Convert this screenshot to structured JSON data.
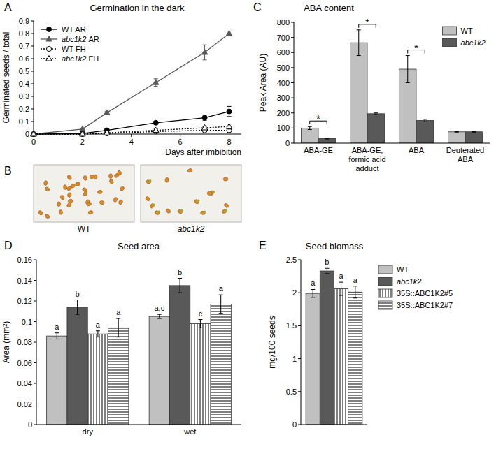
{
  "chart_data": [
    {
      "panel": "A",
      "type": "line",
      "title": "Germination in the dark",
      "x_label": "Days after imbibition",
      "y_label": "Germinated seeds / total",
      "x": [
        0,
        2,
        3,
        5,
        7,
        8
      ],
      "xlim": [
        0,
        8.5
      ],
      "xticks": [
        0,
        2,
        4,
        6,
        8
      ],
      "ylim": [
        0,
        0.9
      ],
      "yticks": [
        0,
        0.1,
        0.2,
        0.3,
        0.4,
        0.5,
        0.6,
        0.7,
        0.8,
        0.9
      ],
      "legend": "top-left",
      "series": [
        {
          "name": "WT AR",
          "color": "#000000",
          "marker": "circle",
          "line_style": "solid",
          "values": [
            0,
            0.005,
            0.03,
            0.09,
            0.13,
            0.18
          ],
          "errors": [
            0,
            0.003,
            0.005,
            0.01,
            0.02,
            0.04
          ]
        },
        {
          "name": "abc1k2 AR",
          "color": "#595959",
          "marker": "triangle",
          "line_style": "solid",
          "values": [
            0,
            0.04,
            0.17,
            0.41,
            0.65,
            0.8
          ],
          "errors": [
            0,
            0.005,
            0.01,
            0.03,
            0.06,
            0.02
          ]
        },
        {
          "name": "WT FH",
          "color": "#000000",
          "marker": "open-circle",
          "line_style": "dotted",
          "values": [
            0,
            0,
            0.005,
            0.02,
            0.03,
            0.03
          ],
          "errors": [
            0,
            0,
            0.003,
            0.005,
            0.01,
            0.01
          ]
        },
        {
          "name": "abc1k2 FH",
          "color": "#000000",
          "marker": "open-triangle",
          "line_style": "dotted",
          "values": [
            0,
            0,
            0.01,
            0.03,
            0.05,
            0.06
          ],
          "errors": [
            0,
            0,
            0.005,
            0.01,
            0.01,
            0.02
          ]
        }
      ]
    },
    {
      "panel": "C",
      "type": "bar",
      "title": "ABA content",
      "y_label": "Peak Area (AU)",
      "categories": [
        "ABA-GE",
        "ABA-GE, formic acid adduct",
        "ABA",
        "Deuterated ABA"
      ],
      "ylim": [
        0,
        800
      ],
      "yticks": [
        0,
        100,
        200,
        300,
        400,
        500,
        600,
        700,
        800
      ],
      "legend": "top-right",
      "significance": [
        "*",
        "*",
        "*",
        null
      ],
      "series": [
        {
          "name": "WT",
          "color": "#c0c0c0",
          "line_style": "solid",
          "values": [
            100,
            665,
            490,
            75
          ],
          "errors": [
            10,
            85,
            90,
            2
          ]
        },
        {
          "name": "abc1k2",
          "color": "#595959",
          "line_style": "solid",
          "values": [
            30,
            195,
            150,
            75
          ],
          "errors": [
            2,
            5,
            8,
            2
          ]
        }
      ]
    },
    {
      "panel": "D",
      "type": "bar",
      "title": "Seed area",
      "y_label": "Area (mm²)",
      "categories": [
        "dry",
        "wet"
      ],
      "ylim": [
        0,
        0.16
      ],
      "yticks": [
        0,
        0.02,
        0.04,
        0.06,
        0.08,
        0.1,
        0.12,
        0.14,
        0.16
      ],
      "series": [
        {
          "color": "#c0c0c0",
          "line_style": "solid",
          "values": [
            0.086,
            0.105
          ],
          "errors": [
            0.003,
            0.002
          ],
          "significance": [
            "a",
            "a,c"
          ]
        },
        {
          "color": "#595959",
          "line_style": "solid",
          "values": [
            0.114,
            0.135
          ],
          "errors": [
            0.007,
            0.007
          ],
          "significance": [
            "b",
            "b"
          ]
        },
        {
          "color": "#000000",
          "line_style": "vertical-hatch",
          "values": [
            0.088,
            0.098
          ],
          "errors": [
            0.003,
            0.004
          ],
          "significance": [
            "a",
            "c"
          ]
        },
        {
          "color": "#000000",
          "line_style": "horizontal-hatch",
          "values": [
            0.094,
            0.117
          ],
          "errors": [
            0.009,
            0.009
          ],
          "significance": [
            "a",
            "a"
          ]
        }
      ]
    },
    {
      "panel": "E",
      "type": "bar",
      "title": "Seed biomass",
      "y_label": "mg/100 seeds",
      "categories": [
        null
      ],
      "ylim": [
        0,
        2.5
      ],
      "yticks": [
        0,
        0.5,
        1,
        1.5,
        2,
        2.5
      ],
      "legend": "right",
      "series": [
        {
          "name": "WT",
          "color": "#c0c0c0",
          "line_style": "solid",
          "values": [
            1.99
          ],
          "errors": [
            0.06
          ],
          "significance": [
            "a"
          ]
        },
        {
          "name": "abc1k2",
          "color": "#595959",
          "line_style": "solid",
          "values": [
            2.33
          ],
          "errors": [
            0.04
          ],
          "significance": [
            "b"
          ]
        },
        {
          "name": "35S::ABC1K2#5",
          "color": "#000000",
          "line_style": "vertical-hatch",
          "values": [
            2.06
          ],
          "errors": [
            0.1
          ],
          "significance": [
            "a"
          ]
        },
        {
          "name": "35S::ABC1K2#7",
          "color": "#000000",
          "line_style": "horizontal-hatch",
          "values": [
            2.01
          ],
          "errors": [
            0.09
          ],
          "significance": [
            "a"
          ]
        }
      ]
    }
  ],
  "photo_panel": {
    "panel": "B",
    "labels": [
      "WT",
      "abc1k2"
    ]
  }
}
